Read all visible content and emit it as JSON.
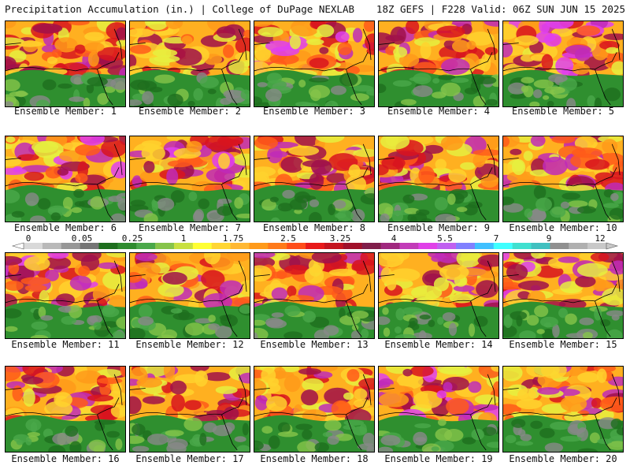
{
  "header": {
    "title": "Precipitation Accumulation (in.) | College of DuPage NEXLAB",
    "valid": "18Z GEFS | F228 Valid: 06Z SUN JUN 15 2025"
  },
  "panels": [
    {
      "label": "Ensemble Member: 1",
      "north_level": 3
    },
    {
      "label": "Ensemble Member: 2",
      "north_level": 2
    },
    {
      "label": "Ensemble Member: 3",
      "north_level": 4
    },
    {
      "label": "Ensemble Member: 4",
      "north_level": 3
    },
    {
      "label": "Ensemble Member: 5",
      "north_level": 4
    },
    {
      "label": "Ensemble Member: 6",
      "north_level": 4
    },
    {
      "label": "Ensemble Member: 7",
      "north_level": 4
    },
    {
      "label": "Ensemble Member: 8",
      "north_level": 3
    },
    {
      "label": "Ensemble Member: 9",
      "north_level": 3
    },
    {
      "label": "Ensemble Member: 10",
      "north_level": 3
    },
    {
      "label": "Ensemble Member: 11",
      "north_level": 4
    },
    {
      "label": "Ensemble Member: 12",
      "north_level": 3
    },
    {
      "label": "Ensemble Member: 13",
      "north_level": 3
    },
    {
      "label": "Ensemble Member: 14",
      "north_level": 3
    },
    {
      "label": "Ensemble Member: 15",
      "north_level": 4
    },
    {
      "label": "Ensemble Member: 16",
      "north_level": 3
    },
    {
      "label": "Ensemble Member: 17",
      "north_level": 3
    },
    {
      "label": "Ensemble Member: 18",
      "north_level": 3
    },
    {
      "label": "Ensemble Member: 19",
      "north_level": 4
    },
    {
      "label": "Ensemble Member: 20",
      "north_level": 3
    }
  ],
  "colorbar": {
    "units": "in.",
    "ticks": [
      "0",
      "0.05",
      "0.25",
      "1",
      "1.75",
      "2.5",
      "3.25",
      "4",
      "5.5",
      "7",
      "9",
      "12"
    ],
    "colors": [
      "#d9d9d9",
      "#b9b9b9",
      "#979797",
      "#757575",
      "#1e6e1e",
      "#2e8b2e",
      "#4aa84a",
      "#86c44a",
      "#c8e040",
      "#ffff33",
      "#ffd633",
      "#ffb833",
      "#ff9a1a",
      "#ff7a1a",
      "#ff4d1a",
      "#e81a1a",
      "#c4141e",
      "#a0102a",
      "#801e4a",
      "#a0287e",
      "#c23cb8",
      "#e040e8",
      "#c060f0",
      "#8080ff",
      "#40c0ff",
      "#40ffff",
      "#40e0d0",
      "#40c0c0",
      "#909090",
      "#b0b0b0",
      "#c8c8c8"
    ]
  },
  "colors": {
    "ocean_dry": "#2f8f2f",
    "coastline": "#000000"
  }
}
